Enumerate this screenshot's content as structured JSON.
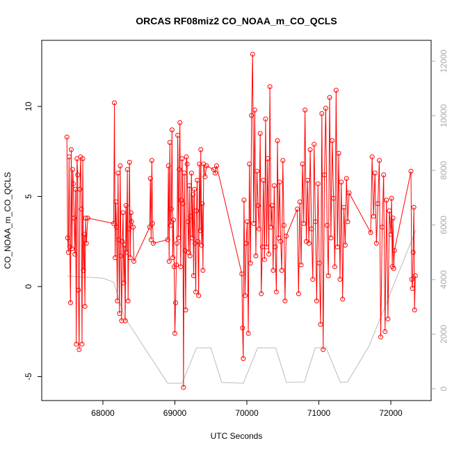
{
  "chart_data": {
    "type": "line",
    "title": "ORCAS RF08miz2 CO_NOAA_m_CO_QCLS",
    "xlabel": "UTC Seconds",
    "ylabel": "CO_NOAA_m_CO_QCLS",
    "xlim": [
      67150,
      72560
    ],
    "ylim": [
      -6.33,
      13.67
    ],
    "y2lim": [
      -433,
      12764
    ],
    "xticks": [
      68000,
      69000,
      70000,
      71000,
      72000
    ],
    "yticks": [
      -5,
      0,
      5,
      10
    ],
    "y2ticks": [
      0,
      2000,
      4000,
      6000,
      8000,
      10000,
      12000
    ],
    "series": [
      {
        "color": "#ff0000",
        "marker": "circle",
        "x": [
          67500,
          67510,
          67520,
          67530,
          67540,
          67550,
          67560,
          67570,
          67580,
          67590,
          67600,
          67610,
          67620,
          67630,
          67640,
          67650,
          67660,
          67670,
          67680,
          67690,
          67700,
          67710,
          67720,
          67730,
          67740,
          67750,
          67760,
          67770,
          67790,
          68150,
          68160,
          68170,
          68180,
          68190,
          68200,
          68210,
          68220,
          68230,
          68240,
          68250,
          68260,
          68270,
          68280,
          68290,
          68300,
          68310,
          68320,
          68330,
          68340,
          68350,
          68360,
          68370,
          68380,
          68390,
          68400,
          68420,
          68430,
          68650,
          68660,
          68670,
          68680,
          68690,
          68700,
          68900,
          68910,
          68920,
          68930,
          68940,
          68950,
          68960,
          68970,
          68980,
          68990,
          69000,
          69010,
          69020,
          69030,
          69040,
          69050,
          69060,
          69070,
          69080,
          69090,
          69100,
          69110,
          69120,
          69130,
          69140,
          69150,
          69160,
          69170,
          69180,
          69190,
          69200,
          69210,
          69220,
          69230,
          69240,
          69250,
          69260,
          69270,
          69280,
          69290,
          69300,
          69310,
          69320,
          69330,
          69340,
          69350,
          69360,
          69370,
          69380,
          69390,
          69400,
          69420,
          69440,
          69540,
          69560,
          69580,
          69930,
          69940,
          69950,
          69960,
          69975,
          69990,
          70005,
          70020,
          70035,
          70050,
          70065,
          70080,
          70095,
          70110,
          70125,
          70140,
          70155,
          70170,
          70185,
          70200,
          70215,
          70230,
          70245,
          70260,
          70275,
          70290,
          70305,
          70320,
          70335,
          70350,
          70365,
          70380,
          70395,
          70410,
          70425,
          70440,
          70455,
          70470,
          70485,
          70500,
          70515,
          70530,
          70545,
          70700,
          70718,
          70736,
          70754,
          70772,
          70790,
          70808,
          70826,
          70844,
          70862,
          70880,
          70898,
          70916,
          70934,
          70952,
          70970,
          70988,
          71006,
          71024,
          71042,
          71060,
          71078,
          71096,
          71114,
          71132,
          71150,
          71168,
          71186,
          71204,
          71222,
          71240,
          71258,
          71276,
          71294,
          71312,
          71330,
          71348,
          71366,
          71384,
          71402,
          71420,
          71720,
          71740,
          71760,
          71780,
          71800,
          71820,
          71840,
          71860,
          71880,
          71900,
          71920,
          71940,
          71960,
          71980,
          72000,
          72010,
          72020,
          72030,
          72040,
          72050,
          72280,
          72290,
          72300,
          72310,
          72320,
          72330,
          72340
        ],
        "values": [
          8.3,
          2.7,
          1.9,
          7.2,
          2.2,
          -0.9,
          7.6,
          2.1,
          6.5,
          5.7,
          3.8,
          1.8,
          5.4,
          -3.2,
          7.1,
          6.2,
          -0.2,
          -3.5,
          5.4,
          7.2,
          4.3,
          -3.2,
          7.1,
          0.9,
          2.9,
          -1.1,
          3.8,
          2.4,
          3.8,
          3.5,
          10.2,
          1.6,
          4.7,
          3.3,
          -0.8,
          6.3,
          2.6,
          -1.5,
          6.7,
          1.7,
          -1.9,
          2.5,
          4.1,
          0.2,
          2.3,
          -1.9,
          4.5,
          1.9,
          6.5,
          -0.8,
          3.2,
          6.9,
          1.6,
          4.1,
          3.6,
          3.3,
          1.4,
          3.3,
          6.0,
          2.6,
          7.0,
          3.5,
          2.4,
          2.6,
          6.7,
          1.4,
          8.0,
          3.4,
          4.3,
          8.7,
          1.6,
          3.7,
          1.1,
          -2.6,
          -0.9,
          1.2,
          2.4,
          8.4,
          2.7,
          6.5,
          9.1,
          1.1,
          4.8,
          7.1,
          4.6,
          -5.6,
          6.3,
          2.0,
          -1.3,
          7.2,
          6.8,
          3.6,
          1.9,
          5.6,
          1.7,
          3.9,
          6.3,
          2.7,
          5.1,
          0.6,
          5.4,
          2.4,
          -0.3,
          4.2,
          5.9,
          2.5,
          -0.5,
          6.8,
          3.1,
          7.6,
          2.3,
          4.6,
          0.9,
          6.8,
          6.1,
          6.7,
          6.5,
          6.3,
          6.7,
          0.7,
          -2.3,
          -4.0,
          4.8,
          -0.5,
          2.4,
          3.6,
          -2.6,
          6.8,
          1.3,
          9.5,
          12.9,
          3.5,
          9.8,
          1.7,
          6.4,
          4.5,
          3.2,
          8.5,
          -0.4,
          2.2,
          5.9,
          1.5,
          9.3,
          2.2,
          7.1,
          1.8,
          11.1,
          3.3,
          4.5,
          0.9,
          5.6,
          2.2,
          -0.3,
          8.1,
          2.7,
          5.8,
          2.5,
          0.9,
          7.0,
          3.4,
          -0.8,
          2.8,
          4.3,
          -0.4,
          4.7,
          1.2,
          6.8,
          3.5,
          9.8,
          2.5,
          5.9,
          2.4,
          7.6,
          3.2,
          0.4,
          7.9,
          3.6,
          -0.8,
          5.7,
          1.3,
          -2.1,
          9.6,
          -3.5,
          6.2,
          9.9,
          3.4,
          0.6,
          10.5,
          2.7,
          8.1,
          4.9,
          1.1,
          10.9,
          2.2,
          7.4,
          0.4,
          5.8,
          -0.7,
          4.4,
          2.3,
          6.0,
          3.6,
          5.2,
          3.0,
          7.2,
          3.9,
          6.3,
          2.4,
          4.6,
          7.0,
          -2.8,
          3.3,
          6.2,
          -2.5,
          4.8,
          -1.8,
          4.2,
          2.9,
          4.9,
          1.1,
          3.8,
          1.0,
          2.0,
          6.4,
          0.4,
          -0.1,
          1.9,
          4.4,
          -1.3,
          0.6
        ]
      },
      {
        "color": "#bbbbbb",
        "axis": "y2",
        "x": [
          67500,
          68000,
          68150,
          68300,
          68900,
          69100,
          69300,
          69500,
          69650,
          69950,
          70150,
          70400,
          70550,
          70800,
          70950,
          71100,
          71300,
          71400,
          71700,
          72350
        ],
        "values": [
          4130,
          4050,
          3900,
          2620,
          200,
          200,
          1500,
          1500,
          230,
          200,
          1500,
          1500,
          230,
          250,
          1500,
          1500,
          230,
          250,
          1580,
          5830
        ]
      }
    ]
  }
}
